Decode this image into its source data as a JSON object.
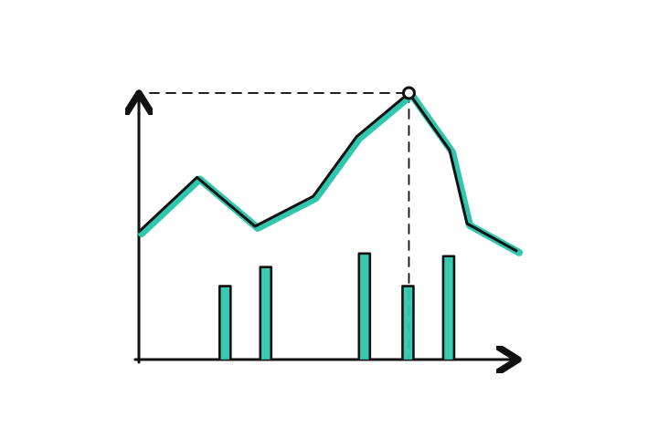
{
  "chart_data": {
    "type": "bar-line-combo",
    "style": "hand-drawn sketch",
    "grid": false,
    "legend": "none",
    "axes": {
      "x": {
        "labels_visible": false,
        "arrow": true
      },
      "y": {
        "labels_visible": false,
        "arrow": true
      }
    },
    "x": [
      0,
      1,
      2,
      3,
      4,
      5,
      6,
      7,
      8,
      9,
      10,
      11,
      12
    ],
    "line_values": [
      47,
      67,
      49,
      60,
      82,
      98,
      77,
      50,
      40
    ],
    "line_x": [
      0,
      2,
      4,
      6,
      7.5,
      9.3,
      10.7,
      11.3,
      13
    ],
    "bar_x": [
      3,
      4.4,
      7.8,
      9.3,
      10.7
    ],
    "bar_values": [
      27,
      34,
      39,
      27,
      38
    ],
    "highlight": {
      "x_index": 5,
      "marker": "circle",
      "guide_lines": "dashed"
    },
    "colors": {
      "stroke": "#111111",
      "accent": "#2ec7ad"
    }
  }
}
